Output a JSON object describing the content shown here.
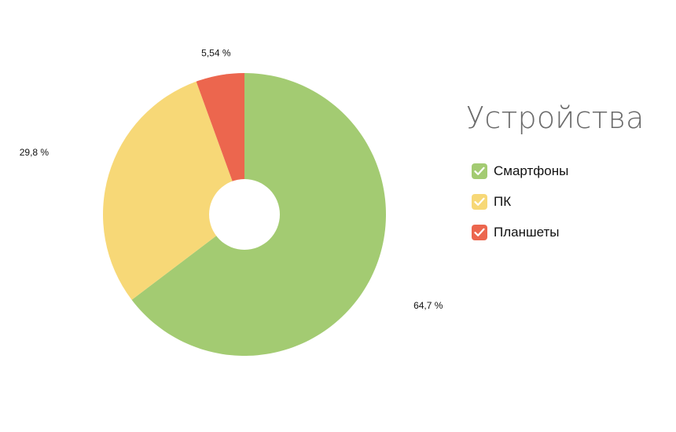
{
  "chart_data": {
    "type": "pie",
    "title": "Устройства",
    "series": [
      {
        "name": "Смартфоны",
        "value": 64.7,
        "label": "64,7 %",
        "color": "#a3cb72"
      },
      {
        "name": "ПК",
        "value": 29.8,
        "label": "29,8 %",
        "color": "#f7d877"
      },
      {
        "name": "Планшеты",
        "value": 5.54,
        "label": "5,54 %",
        "color": "#ec664e"
      }
    ],
    "legend_position": "right",
    "donut": true
  },
  "legend": {
    "title": "Устройства",
    "items": [
      {
        "label": "Смартфоны",
        "color": "#a3cb72",
        "checked": true,
        "icon": "check-icon"
      },
      {
        "label": "ПК",
        "color": "#f7d877",
        "checked": true,
        "icon": "check-icon"
      },
      {
        "label": "Планшеты",
        "color": "#ec664e",
        "checked": true,
        "icon": "check-icon"
      }
    ]
  }
}
